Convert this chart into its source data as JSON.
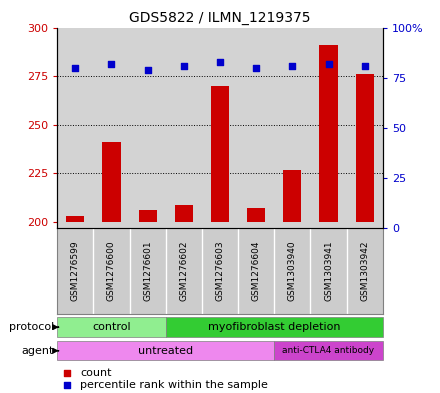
{
  "title": "GDS5822 / ILMN_1219375",
  "samples": [
    "GSM1276599",
    "GSM1276600",
    "GSM1276601",
    "GSM1276602",
    "GSM1276603",
    "GSM1276604",
    "GSM1303940",
    "GSM1303941",
    "GSM1303942"
  ],
  "counts": [
    203,
    241,
    206,
    209,
    270,
    207,
    227,
    291,
    276
  ],
  "percentile_ranks": [
    80,
    82,
    79,
    81,
    83,
    80,
    81,
    82,
    81
  ],
  "ylim_left": [
    197,
    300
  ],
  "ylim_right": [
    0,
    100
  ],
  "yticks_left": [
    200,
    225,
    250,
    275,
    300
  ],
  "yticks_right": [
    0,
    25,
    50,
    75,
    100
  ],
  "bar_color": "#cc0000",
  "dot_color": "#0000cc",
  "bar_bottom": 200,
  "protocol_color_light": "#90ee90",
  "protocol_color_dark": "#33cc33",
  "agent_color_light": "#ee88ee",
  "agent_color_dark": "#cc44cc",
  "bg_color": "#d3d3d3",
  "label_area_color": "#cccccc",
  "figsize": [
    4.4,
    3.93
  ],
  "dpi": 100
}
